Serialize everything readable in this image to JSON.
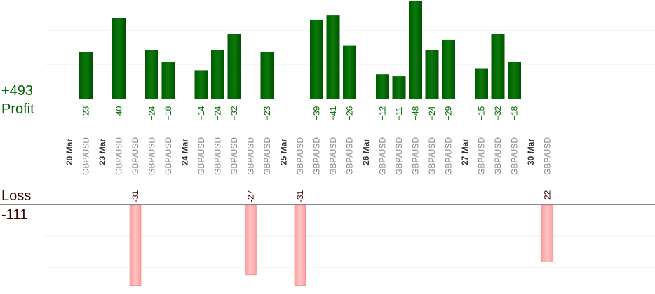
{
  "summary": {
    "profit_total": "+493",
    "profit_label": "Profit",
    "loss_label": "Loss",
    "loss_total": "-111"
  },
  "colors": {
    "profit_bar": "#006400",
    "profit_bar_light": "#0a7a0a",
    "profit_text": "#006400",
    "loss_bar": "#ffb3b3",
    "loss_bar_edge": "#e07a7a",
    "loss_text": "#3a0000",
    "axis": "#888888",
    "grid": "#eeeeee",
    "label_gray": "#888888",
    "date_text": "#333333"
  },
  "chart_data": {
    "type": "bar",
    "title": "",
    "profit_ylim": [
      0,
      50
    ],
    "loss_ylim": [
      0,
      40
    ],
    "grid": true,
    "columns": [
      {
        "kind": "date",
        "label": "20 Mar"
      },
      {
        "kind": "trade",
        "label": "GBP/USD",
        "value": 23
      },
      {
        "kind": "date",
        "label": "23 Mar"
      },
      {
        "kind": "trade",
        "label": "GBP/USD",
        "value": 40
      },
      {
        "kind": "trade",
        "label": "GBP/USD",
        "value": -31
      },
      {
        "kind": "trade",
        "label": "GBP/USD",
        "value": 24
      },
      {
        "kind": "trade",
        "label": "GBP/USD",
        "value": 18
      },
      {
        "kind": "date",
        "label": "24 Mar"
      },
      {
        "kind": "trade",
        "label": "GBP/USD",
        "value": 14
      },
      {
        "kind": "trade",
        "label": "GBP/USD",
        "value": 24
      },
      {
        "kind": "trade",
        "label": "GBP/USD",
        "value": 32
      },
      {
        "kind": "trade",
        "label": "GBP/USD",
        "value": -27
      },
      {
        "kind": "trade",
        "label": "GBP/USD",
        "value": 23
      },
      {
        "kind": "date",
        "label": "25 Mar"
      },
      {
        "kind": "trade",
        "label": "GBP/USD",
        "value": -31
      },
      {
        "kind": "trade",
        "label": "GBP/USD",
        "value": 39
      },
      {
        "kind": "trade",
        "label": "GBP/USD",
        "value": 41
      },
      {
        "kind": "trade",
        "label": "GBP/USD",
        "value": 26
      },
      {
        "kind": "date",
        "label": "26 Mar"
      },
      {
        "kind": "trade",
        "label": "GBP/USD",
        "value": 12
      },
      {
        "kind": "trade",
        "label": "GBP/USD",
        "value": 11
      },
      {
        "kind": "trade",
        "label": "GBP/USD",
        "value": 48
      },
      {
        "kind": "trade",
        "label": "GBP/USD",
        "value": 24
      },
      {
        "kind": "trade",
        "label": "GBP/USD",
        "value": 29
      },
      {
        "kind": "date",
        "label": "27 Mar"
      },
      {
        "kind": "trade",
        "label": "GBP/USD",
        "value": 15
      },
      {
        "kind": "trade",
        "label": "GBP/USD",
        "value": 32
      },
      {
        "kind": "trade",
        "label": "GBP/USD",
        "value": 18
      },
      {
        "kind": "date",
        "label": "30 Mar"
      },
      {
        "kind": "trade",
        "label": "GBP/USD",
        "value": -22
      }
    ]
  }
}
